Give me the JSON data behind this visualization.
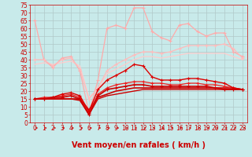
{
  "xlabel": "Vent moyen/en rafales ( km/h )",
  "background_color": "#c8eaea",
  "grid_color": "#b0c8c8",
  "xlim": [
    -0.5,
    23.5
  ],
  "ylim": [
    0,
    75
  ],
  "yticks": [
    0,
    5,
    10,
    15,
    20,
    25,
    30,
    35,
    40,
    45,
    50,
    55,
    60,
    65,
    70,
    75
  ],
  "xticks": [
    0,
    1,
    2,
    3,
    4,
    5,
    6,
    7,
    8,
    9,
    10,
    11,
    12,
    13,
    14,
    15,
    16,
    17,
    18,
    19,
    20,
    21,
    22,
    23
  ],
  "series": [
    {
      "x": [
        0,
        1,
        2,
        3,
        4,
        5,
        6,
        7,
        8,
        9,
        10,
        11,
        12,
        13,
        14,
        15,
        16,
        17,
        18,
        19,
        20,
        21,
        22,
        23
      ],
      "y": [
        65,
        40,
        35,
        41,
        42,
        33,
        6,
        27,
        60,
        62,
        60,
        73,
        73,
        58,
        54,
        52,
        62,
        63,
        58,
        55,
        57,
        57,
        45,
        42
      ],
      "color": "#ffaaaa",
      "lw": 0.9,
      "marker": "+",
      "markersize": 3.0,
      "zorder": 3
    },
    {
      "x": [
        0,
        1,
        2,
        3,
        4,
        5,
        6,
        7,
        8,
        9,
        10,
        11,
        12,
        13,
        14,
        15,
        16,
        17,
        18,
        19,
        20,
        21,
        22,
        23
      ],
      "y": [
        40,
        40,
        36,
        40,
        41,
        34,
        15,
        22,
        33,
        37,
        40,
        43,
        45,
        45,
        44,
        45,
        47,
        49,
        49,
        49,
        49,
        50,
        47,
        41
      ],
      "color": "#ffbbbb",
      "lw": 0.9,
      "marker": "+",
      "markersize": 2.5,
      "zorder": 3
    },
    {
      "x": [
        0,
        1,
        2,
        3,
        4,
        5,
        6,
        7,
        8,
        9,
        10,
        11,
        12,
        13,
        14,
        15,
        16,
        17,
        18,
        19,
        20,
        21,
        22,
        23
      ],
      "y": [
        37,
        38,
        37,
        38,
        39,
        36,
        16,
        21,
        31,
        34,
        37,
        40,
        42,
        42,
        41,
        42,
        43,
        44,
        44,
        44,
        44,
        44,
        42,
        40
      ],
      "color": "#ffcccc",
      "lw": 0.9,
      "marker": null,
      "markersize": 0,
      "zorder": 2
    },
    {
      "x": [
        0,
        1,
        2,
        3,
        4,
        5,
        6,
        7,
        8,
        9,
        10,
        11,
        12,
        13,
        14,
        15,
        16,
        17,
        18,
        19,
        20,
        21,
        22,
        23
      ],
      "y": [
        15,
        15,
        16,
        18,
        19,
        17,
        7,
        21,
        27,
        30,
        33,
        37,
        36,
        29,
        27,
        27,
        27,
        28,
        28,
        27,
        26,
        25,
        22,
        21
      ],
      "color": "#dd0000",
      "lw": 1.0,
      "marker": "+",
      "markersize": 3.5,
      "zorder": 5
    },
    {
      "x": [
        0,
        1,
        2,
        3,
        4,
        5,
        6,
        7,
        8,
        9,
        10,
        11,
        12,
        13,
        14,
        15,
        16,
        17,
        18,
        19,
        20,
        21,
        22,
        23
      ],
      "y": [
        15,
        15,
        15,
        15,
        15,
        15,
        8,
        16,
        18,
        20,
        21,
        22,
        22,
        22,
        22,
        22,
        22,
        22,
        22,
        22,
        22,
        22,
        22,
        21
      ],
      "color": "#cc0000",
      "lw": 1.2,
      "marker": null,
      "markersize": 0,
      "zorder": 4
    },
    {
      "x": [
        0,
        1,
        2,
        3,
        4,
        5,
        6,
        7,
        8,
        9,
        10,
        11,
        12,
        13,
        14,
        15,
        16,
        17,
        18,
        19,
        20,
        21,
        22,
        23
      ],
      "y": [
        15,
        15,
        15,
        15,
        15,
        14,
        5,
        15,
        17,
        18,
        19,
        20,
        21,
        21,
        21,
        21,
        21,
        21,
        21,
        21,
        21,
        21,
        21,
        21
      ],
      "color": "#cc0000",
      "lw": 1.0,
      "marker": null,
      "markersize": 0,
      "zorder": 4
    },
    {
      "x": [
        0,
        1,
        2,
        3,
        4,
        5,
        6,
        7,
        8,
        9,
        10,
        11,
        12,
        13,
        14,
        15,
        16,
        17,
        18,
        19,
        20,
        21,
        22,
        23
      ],
      "y": [
        15,
        16,
        16,
        17,
        18,
        16,
        6,
        18,
        22,
        24,
        25,
        26,
        26,
        25,
        25,
        24,
        24,
        25,
        25,
        24,
        24,
        23,
        22,
        21
      ],
      "color": "#ee2222",
      "lw": 0.9,
      "marker": "+",
      "markersize": 2.5,
      "zorder": 4
    },
    {
      "x": [
        0,
        1,
        2,
        3,
        4,
        5,
        6,
        7,
        8,
        9,
        10,
        11,
        12,
        13,
        14,
        15,
        16,
        17,
        18,
        19,
        20,
        21,
        22,
        23
      ],
      "y": [
        15,
        15,
        16,
        16,
        17,
        15,
        5,
        17,
        21,
        22,
        23,
        24,
        24,
        23,
        23,
        23,
        23,
        23,
        23,
        23,
        22,
        21,
        21,
        21
      ],
      "color": "#cc0000",
      "lw": 1.2,
      "marker": "+",
      "markersize": 2.5,
      "zorder": 5
    }
  ],
  "xlabel_color": "#cc0000",
  "xlabel_fontsize": 7,
  "tick_color": "#cc0000",
  "tick_fontsize": 5.5
}
